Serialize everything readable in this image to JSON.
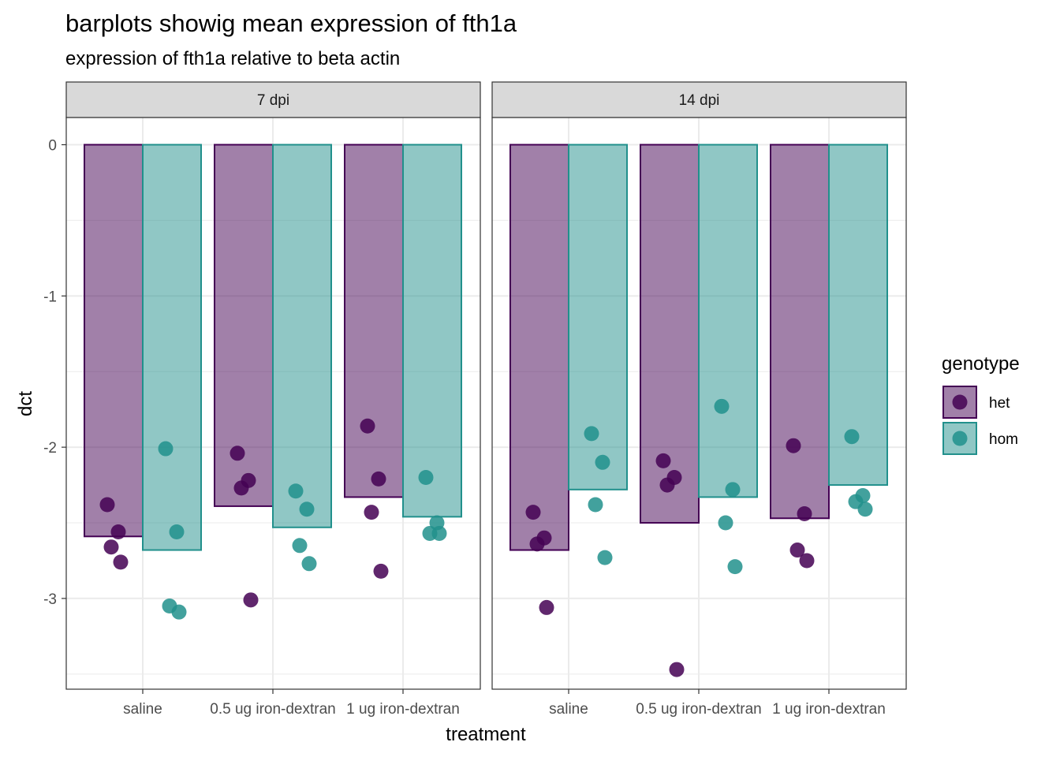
{
  "chart_data": {
    "type": "bar",
    "title": "barplots showig mean expression of fth1a",
    "subtitle": "expression of fth1a relative to beta actin",
    "xlabel": "treatment",
    "ylabel": "dct",
    "ylim": [
      -3.6,
      0.18
    ],
    "yticks": [
      0,
      -1,
      -2,
      -3
    ],
    "categories": [
      "saline",
      "0.5 ug iron-dextran",
      "1 ug iron-dextran"
    ],
    "legend": {
      "title": "genotype",
      "placement": "right",
      "entries": [
        {
          "name": "het",
          "color": "#440154"
        },
        {
          "name": "hom",
          "color": "#21908C"
        }
      ]
    },
    "colors": {
      "het": "#440154",
      "hom": "#21908C"
    },
    "grid": true,
    "facets": [
      {
        "label": "7 dpi",
        "series": [
          {
            "name": "het",
            "values": [
              -2.59,
              -2.39,
              -2.33
            ]
          },
          {
            "name": "hom",
            "values": [
              -2.68,
              -2.53,
              -2.46
            ]
          }
        ],
        "points": {
          "het": [
            {
              "category": "saline",
              "values": [
                -2.38,
                -2.56,
                -2.66,
                -2.76
              ]
            },
            {
              "category": "0.5 ug iron-dextran",
              "values": [
                -2.04,
                -2.22,
                -2.27,
                -3.01
              ]
            },
            {
              "category": "1 ug iron-dextran",
              "values": [
                -1.86,
                -2.21,
                -2.43,
                -2.82
              ]
            }
          ],
          "hom": [
            {
              "category": "saline",
              "values": [
                -2.01,
                -2.56,
                -3.05,
                -3.09
              ]
            },
            {
              "category": "0.5 ug iron-dextran",
              "values": [
                -2.29,
                -2.41,
                -2.65,
                -2.77
              ]
            },
            {
              "category": "1 ug iron-dextran",
              "values": [
                -2.2,
                -2.5,
                -2.57,
                -2.57
              ]
            }
          ]
        }
      },
      {
        "label": "14 dpi",
        "series": [
          {
            "name": "het",
            "values": [
              -2.68,
              -2.5,
              -2.47
            ]
          },
          {
            "name": "hom",
            "values": [
              -2.28,
              -2.33,
              -2.25
            ]
          }
        ],
        "points": {
          "het": [
            {
              "category": "saline",
              "values": [
                -2.43,
                -2.6,
                -2.64,
                -3.06
              ]
            },
            {
              "category": "0.5 ug iron-dextran",
              "values": [
                -2.09,
                -2.2,
                -2.25,
                -3.47
              ]
            },
            {
              "category": "1 ug iron-dextran",
              "values": [
                -1.99,
                -2.44,
                -2.68,
                -2.75
              ]
            }
          ],
          "hom": [
            {
              "category": "saline",
              "values": [
                -1.91,
                -2.1,
                -2.38,
                -2.73
              ]
            },
            {
              "category": "0.5 ug iron-dextran",
              "values": [
                -1.73,
                -2.28,
                -2.5,
                -2.79
              ]
            },
            {
              "category": "1 ug iron-dextran",
              "values": [
                -1.93,
                -2.32,
                -2.36,
                -2.41
              ]
            }
          ]
        }
      }
    ]
  }
}
